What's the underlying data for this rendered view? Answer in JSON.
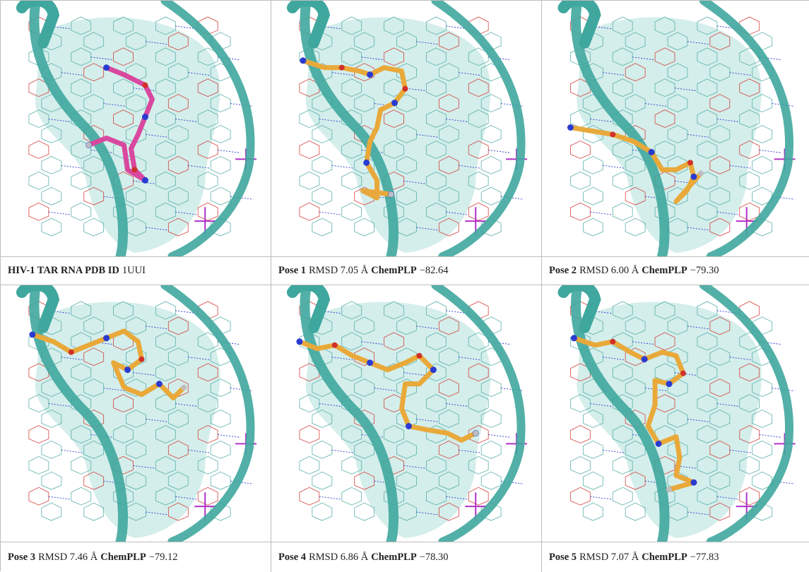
{
  "panels": [
    {
      "ligand_color": "#d9489f",
      "caption": [
        {
          "bold": true,
          "text": "HIV-1 TAR RNA PDB ID"
        },
        {
          "bold": false,
          "text": "1UUI"
        }
      ]
    },
    {
      "ligand_color": "#e9a93a",
      "caption": [
        {
          "bold": true,
          "text": "Pose 1"
        },
        {
          "bold": false,
          "text": "RMSD 7.05 Å"
        },
        {
          "bold": true,
          "text": "ChemPLP"
        },
        {
          "bold": false,
          "text": "−82.64"
        }
      ]
    },
    {
      "ligand_color": "#e9a93a",
      "caption": [
        {
          "bold": true,
          "text": "Pose 2"
        },
        {
          "bold": false,
          "text": "RMSD 6.00 Å"
        },
        {
          "bold": true,
          "text": "ChemPLP"
        },
        {
          "bold": false,
          "text": "−79.30"
        }
      ]
    },
    {
      "ligand_color": "#e9a93a",
      "caption": [
        {
          "bold": true,
          "text": "Pose 3"
        },
        {
          "bold": false,
          "text": "RMSD 7.46 Å"
        },
        {
          "bold": true,
          "text": "ChemPLP"
        },
        {
          "bold": false,
          "text": "−79.12"
        }
      ]
    },
    {
      "ligand_color": "#e9a93a",
      "caption": [
        {
          "bold": true,
          "text": "Pose 4"
        },
        {
          "bold": false,
          "text": "RMSD 6.86 Å"
        },
        {
          "bold": true,
          "text": "ChemPLP"
        },
        {
          "bold": false,
          "text": "−78.30"
        }
      ]
    },
    {
      "ligand_color": "#e9a93a",
      "caption": [
        {
          "bold": true,
          "text": "Pose 5"
        },
        {
          "bold": false,
          "text": "RMSD 7.07 Å"
        },
        {
          "bold": true,
          "text": "ChemPLP"
        },
        {
          "bold": false,
          "text": "−77.83"
        }
      ]
    }
  ],
  "colors": {
    "ribbon": "#3fa79e",
    "surface": "#9fd9d2",
    "nucleotide": "#4aa7a0",
    "oxygen": "#d0302a",
    "nitrogen": "#2a3bd0",
    "phosphate": "#b030c8"
  }
}
